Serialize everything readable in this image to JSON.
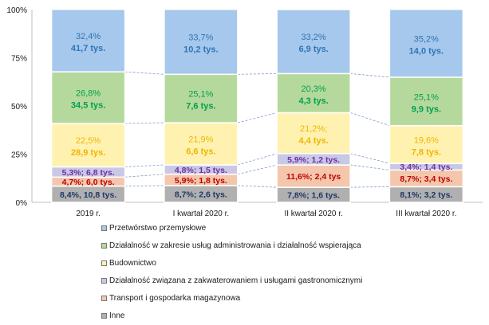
{
  "chart_data": {
    "type": "bar",
    "stacked": true,
    "percent_stacked": true,
    "categories": [
      "2019 r.",
      "I kwartał 2020 r.",
      "II kwartał 2020 r.",
      "III kwartał 2020 r."
    ],
    "ylim": [
      0,
      100
    ],
    "yticks": [
      "0%",
      "25%",
      "50%",
      "75%",
      "100%"
    ],
    "grid": false,
    "legend_position": "bottom",
    "series": [
      {
        "name": "Inne",
        "color": "#b0b0b0",
        "values": [
          8.4,
          8.7,
          7.8,
          8.1
        ],
        "labels": [
          "8,4%, 10,8 tys.",
          "8,7%; 2,6 tys.",
          "7,8%; 1,6 tys.",
          "8,1%; 3,2 tys."
        ],
        "label_color": "#1f3864"
      },
      {
        "name": "Transport i gospodarka magazynowa",
        "color": "#f4c7ad",
        "values": [
          4.7,
          5.9,
          11.6,
          8.7
        ],
        "labels": [
          "4,7%; 6,0 tys.",
          "5,9%; 1,8 tys.",
          "11,6%; 2,4 tys",
          "8,7%; 3,4 tys."
        ],
        "label_color": "#c00000"
      },
      {
        "name": "Działalność związana z zakwaterowaniem i usługami gastronomicznymi",
        "color": "#c9c8e6",
        "values": [
          5.3,
          4.8,
          5.9,
          3.4
        ],
        "labels": [
          "5,3%; 6,8 tys.",
          "4,8%; 1,5 tys.",
          "5,9%; 1,2 tys.",
          "3,4%; 1,4 tys."
        ],
        "label_color": "#7030a0"
      },
      {
        "name": "Budownictwo",
        "color": "#fff2b0",
        "values": [
          22.5,
          21.9,
          21.2,
          19.6
        ],
        "labels": [
          [
            "22,5%",
            "28,9 tys."
          ],
          [
            "21,9%",
            "6,6 tys."
          ],
          [
            "21,2%;",
            "4,4 tys."
          ],
          [
            "19,6%",
            "7,8 tys."
          ]
        ],
        "label_color": "#f0b400"
      },
      {
        "name": "Działalność w zakresie usług administrowania i działalność wspierająca",
        "color": "#b5d99c",
        "values": [
          26.8,
          25.1,
          20.3,
          25.1
        ],
        "labels": [
          [
            "26,8%",
            "34,5 tys."
          ],
          [
            "25,1%",
            "7,6 tys."
          ],
          [
            "20,3%",
            "4,3 tys."
          ],
          [
            "25,1%",
            "9,9 tys."
          ]
        ],
        "label_color": "#00a050"
      },
      {
        "name": "Przetwórstwo przemysłowe",
        "color": "#a6c8ec",
        "values": [
          32.4,
          33.7,
          33.2,
          35.2
        ],
        "labels": [
          [
            "32,4%",
            "41,7 tys."
          ],
          [
            "33,7%",
            "10,2 tys."
          ],
          [
            "33,2%",
            "6,9 tys."
          ],
          [
            "35,2%",
            "14,0 tys."
          ]
        ],
        "label_color": "#2e75b6"
      }
    ],
    "legend_order": [
      "Przetwórstwo przemysłowe",
      "Działalność w zakresie usług administrowania i działalność wspierająca",
      "Budownictwo",
      "Działalność związana z zakwaterowaniem i usługami gastronomicznymi",
      "Transport i gospodarka magazynowa",
      "Inne"
    ]
  }
}
